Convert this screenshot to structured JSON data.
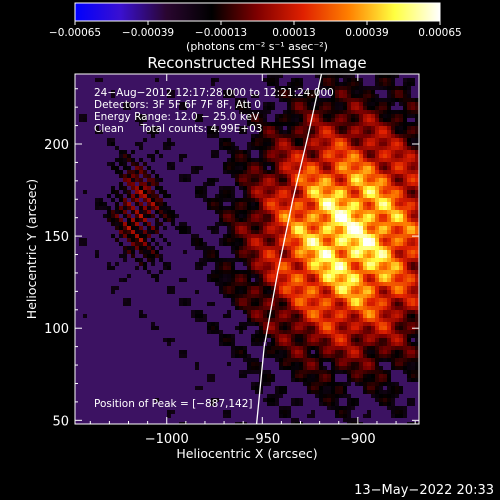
{
  "colorbar": {
    "tick_labels": [
      "−0.00065",
      "−0.00039",
      "−0.00013",
      "0.00013",
      "0.00039",
      "0.00065"
    ],
    "tick_values": [
      -0.00065,
      -0.00039,
      -0.00013,
      0.00013,
      0.00039,
      0.00065
    ],
    "units": "(photons cm⁻² s⁻¹ asec⁻²)",
    "range": [
      -0.00065,
      0.00065
    ],
    "colors": [
      "#0000ff",
      "#3a10d0",
      "#2a0630",
      "#000000",
      "#800000",
      "#e02000",
      "#ff8000",
      "#ffff40",
      "#ffffff"
    ]
  },
  "chart_data": {
    "type": "heatmap",
    "title": "Reconstructed RHESSI Image",
    "xlabel": "Heliocentric X (arcsec)",
    "ylabel": "Heliocentric Y (arcsec)",
    "xlim": [
      -1048,
      -868
    ],
    "ylim": [
      48,
      238
    ],
    "x_ticks": [
      -1000,
      -950,
      -900
    ],
    "x_tick_labels": [
      "−1000",
      "−950",
      "−900"
    ],
    "y_ticks": [
      50,
      100,
      150,
      200
    ],
    "y_tick_labels": [
      "50",
      "100",
      "150",
      "200"
    ],
    "info_lines": [
      "24−Aug−2012 12:17:28.000 to 12:21:24.000",
      "Detectors: 3F 5F 6F 7F 8F, Att 0",
      "Energy Range: 12.0 − 25.0 keV",
      "Clean     Total counts: 4.99E+03"
    ],
    "peak_label": "Position of Peak = [−887,142]",
    "peak_position": [
      -887,
      142
    ],
    "limb_points": [
      [
        -953,
        48
      ],
      [
        -949,
        90
      ],
      [
        -942,
        130
      ],
      [
        -934,
        170
      ],
      [
        -926,
        205
      ],
      [
        -919,
        238
      ]
    ],
    "source_center": [
      -905,
      150
    ],
    "background_color": "#3c1262",
    "limb_color": "#ffffff"
  },
  "footer": {
    "timestamp": "13−May−2022 20:33"
  }
}
